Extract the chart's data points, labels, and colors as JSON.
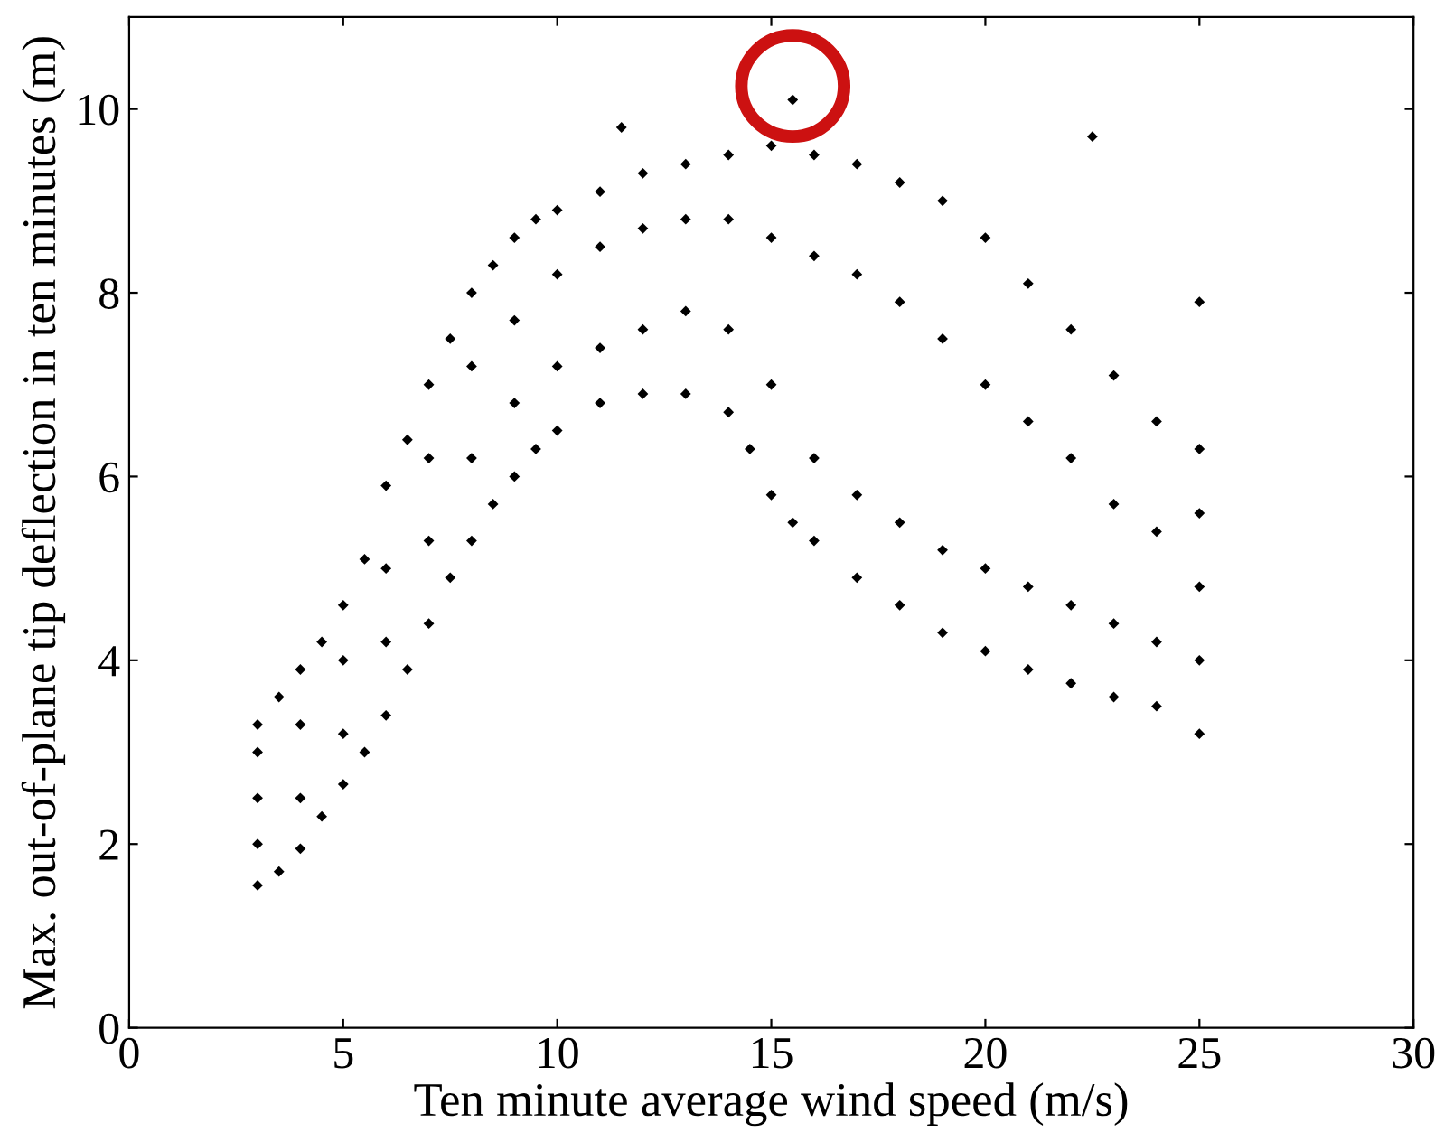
{
  "chart_data": {
    "type": "scatter",
    "xlabel": "Ten minute average wind speed (m/s)",
    "ylabel": "Max. out-of-plane tip deflection in ten minutes (m)",
    "xlim": [
      0,
      30
    ],
    "xticks": [
      0,
      5,
      10,
      15,
      20,
      25,
      30
    ],
    "ylim": [
      0,
      11
    ],
    "yticks": [
      0,
      2,
      4,
      6,
      8,
      10
    ],
    "grid": false,
    "marker": "diamond",
    "series": [
      {
        "color": "#000000",
        "x": [
          3,
          3.5,
          4,
          4.5,
          5,
          5.5,
          6,
          6.5,
          7,
          7.5,
          8,
          8.5,
          9,
          9.5,
          10,
          11,
          11.5,
          12,
          13,
          14,
          15,
          15.5,
          16,
          17,
          18,
          19,
          20,
          21,
          22,
          22.5,
          23,
          24,
          25,
          25,
          3,
          3.5,
          4,
          4.5,
          5,
          5.5,
          6,
          6.5,
          7,
          7.5,
          8,
          8.5,
          9,
          9.5,
          10,
          11,
          12,
          13,
          14,
          14.5,
          15,
          15.5,
          16,
          17,
          18,
          19,
          20,
          21,
          22,
          23,
          24,
          25,
          3,
          3,
          3,
          4,
          4,
          5,
          5,
          6,
          6,
          7,
          7,
          8,
          8,
          9,
          9,
          10,
          10,
          11,
          11,
          12,
          12,
          13,
          13,
          14,
          14,
          15,
          15,
          16,
          16,
          17,
          17,
          18,
          18,
          19,
          19,
          20,
          20,
          21,
          21,
          22,
          22,
          23,
          23,
          24,
          24,
          25,
          25,
          25
        ],
        "values": [
          3.3,
          3.6,
          3.9,
          4.2,
          4.6,
          5.1,
          5.9,
          6.4,
          7.0,
          7.5,
          8.0,
          8.3,
          8.6,
          8.8,
          8.9,
          9.1,
          9.8,
          9.3,
          9.4,
          9.5,
          9.6,
          10.1,
          9.5,
          9.4,
          9.2,
          9.0,
          8.6,
          8.1,
          7.6,
          9.7,
          7.1,
          6.6,
          6.3,
          7.9,
          1.55,
          1.7,
          1.95,
          2.3,
          2.65,
          3.0,
          3.4,
          3.9,
          4.4,
          4.9,
          5.3,
          5.7,
          6.0,
          6.3,
          6.5,
          6.8,
          6.9,
          6.9,
          6.7,
          6.3,
          5.8,
          5.5,
          5.3,
          4.9,
          4.6,
          4.3,
          4.1,
          3.9,
          3.75,
          3.6,
          3.5,
          3.2,
          2.0,
          2.5,
          3.0,
          2.5,
          3.3,
          3.2,
          4.0,
          4.2,
          5.0,
          5.3,
          6.2,
          6.2,
          7.2,
          6.8,
          7.7,
          7.2,
          8.2,
          7.4,
          8.5,
          7.6,
          8.7,
          7.8,
          8.8,
          7.6,
          8.8,
          7.0,
          8.6,
          6.2,
          8.4,
          5.8,
          8.2,
          5.5,
          7.9,
          5.2,
          7.5,
          5.0,
          7.0,
          4.8,
          6.6,
          4.6,
          6.2,
          4.4,
          5.7,
          4.2,
          5.4,
          4.0,
          4.8,
          5.6
        ]
      }
    ]
  }
}
